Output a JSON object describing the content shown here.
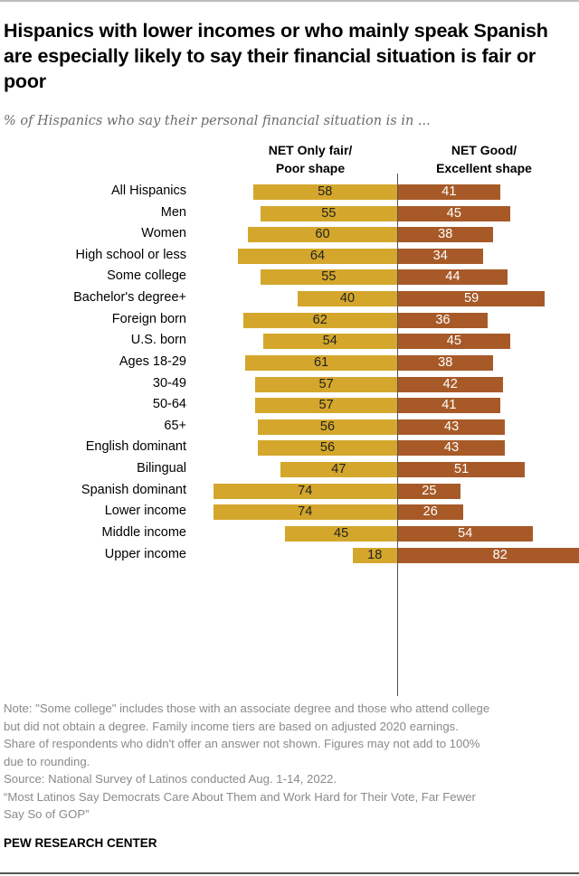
{
  "title": "Hispanics with lower incomes or who mainly speak Spanish are especially likely to say their financial situation is fair or poor",
  "subtitle": "% of Hispanics who say their personal financial situation is in ...",
  "colors": {
    "left": "#d4a72c",
    "right": "#a75a28"
  },
  "chart_data": {
    "type": "bar",
    "orientation": "diverging-horizontal",
    "title": "Hispanics with lower incomes or who mainly speak Spanish are especially likely to say their financial situation is fair or poor",
    "subtitle": "% of Hispanics who say their personal financial situation is in ...",
    "series": [
      {
        "name": "NET Only fair/ Poor shape",
        "values": [
          58,
          55,
          60,
          64,
          55,
          40,
          62,
          54,
          61,
          57,
          57,
          56,
          56,
          47,
          74,
          74,
          45,
          18
        ]
      },
      {
        "name": "NET Good/ Excellent shape",
        "values": [
          41,
          45,
          38,
          34,
          44,
          59,
          36,
          45,
          38,
          42,
          41,
          43,
          43,
          51,
          25,
          26,
          54,
          82
        ]
      }
    ],
    "column_headers": [
      [
        "NET Only fair/",
        "Poor shape"
      ],
      [
        "NET Good/",
        "Excellent shape"
      ]
    ],
    "categories": [
      "All Hispanics",
      "Men",
      "Women",
      "High school or less",
      "Some college",
      "Bachelor's degree+",
      "Foreign born",
      "U.S. born",
      "Ages 18-29",
      "30-49",
      "50-64",
      "65+",
      "English dominant",
      "Bilingual",
      "Spanish dominant",
      "Lower income",
      "Middle income",
      "Upper income"
    ],
    "groups": [
      [
        0
      ],
      [
        1,
        2
      ],
      [
        3,
        4,
        5
      ],
      [
        6,
        7
      ],
      [
        8,
        9,
        10,
        11
      ],
      [
        12,
        13,
        14
      ],
      [
        15,
        16,
        17
      ]
    ],
    "xlabel": "",
    "ylabel": "",
    "xlim": [
      0,
      100
    ],
    "grid": false,
    "legend": "column headers at top"
  },
  "notes": [
    "Note: \"Some college\" includes those with an associate degree and those who attend college",
    "but did not obtain a degree. Family income tiers are based on adjusted 2020 earnings.",
    "Share of respondents who didn't offer an answer not shown. Figures may not add to 100%",
    "due to rounding.",
    "Source: National Survey of Latinos conducted Aug. 1-14, 2022.",
    "“Most Latinos Say Democrats Care About Them and Work Hard for Their Vote, Far Fewer",
    "Say So of GOP”"
  ],
  "brand": "PEW RESEARCH CENTER"
}
